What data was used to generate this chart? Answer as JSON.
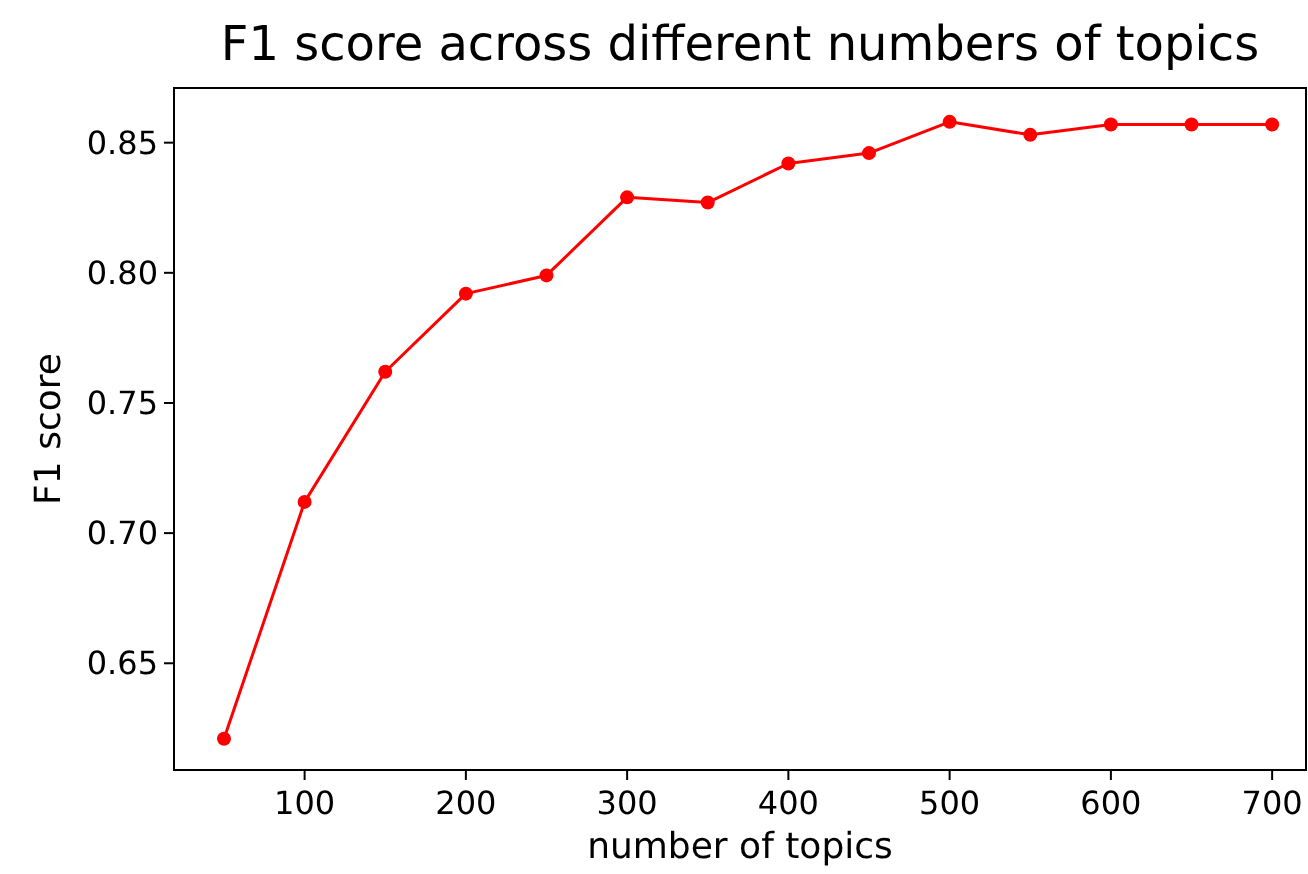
{
  "chart_data": {
    "type": "line",
    "title": "F1 score across different numbers of topics",
    "xlabel": "number of topics",
    "ylabel": "F1 score",
    "x": [
      50,
      100,
      150,
      200,
      250,
      300,
      350,
      400,
      450,
      500,
      550,
      600,
      650,
      700
    ],
    "series": [
      {
        "color": "#ff0000",
        "values": [
          0.621,
          0.712,
          0.762,
          0.792,
          0.799,
          0.829,
          0.827,
          0.842,
          0.846,
          0.858,
          0.853,
          0.857,
          0.857,
          0.857
        ]
      }
    ],
    "xlim": [
      19,
      721
    ],
    "xticks": [
      100,
      200,
      300,
      400,
      500,
      600,
      700
    ],
    "ylim": [
      0.609,
      0.871
    ],
    "yticks": [
      {
        "value": 0.65,
        "label": "0.65"
      },
      {
        "value": 0.7,
        "label": "0.70"
      },
      {
        "value": 0.75,
        "label": "0.75"
      },
      {
        "value": 0.8,
        "label": "0.80"
      },
      {
        "value": 0.85,
        "label": "0.85"
      }
    ],
    "marker": "circle",
    "line_style": "solid"
  }
}
